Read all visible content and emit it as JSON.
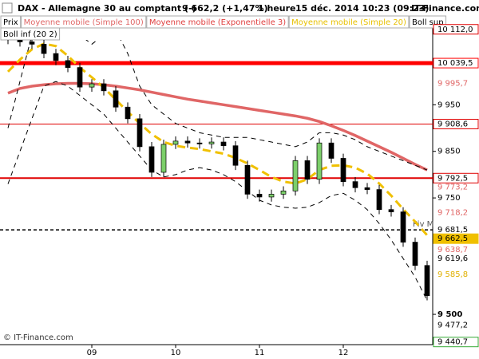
{
  "chart_data": {
    "type": "candlestick",
    "header": [
      "DAX - Allemagne 30 au comptant (-)",
      "9 662,2 (+1,47%)",
      "1 heure",
      "15 déc. 2014 10:23 (09:23)",
      "IT-Finance.com"
    ],
    "legend": [
      {
        "label": "Prix",
        "color": "#000000"
      },
      {
        "label": "Moyenne mobile (Simple 100)",
        "color": "#e06666"
      },
      {
        "label": "Moyenne mobile (Exponentielle 3)",
        "color": "#e04040"
      },
      {
        "label": "Moyenne mobile (Simple 20)",
        "color": "#e8c000"
      },
      {
        "label": "Boll sup",
        "color": "#000000"
      },
      {
        "label": "Boll inf (20 2)",
        "color": "#000000"
      }
    ],
    "footer": "© IT-Finance.com",
    "annotation": "Piv M",
    "categories": [
      null,
      null,
      null,
      null,
      null,
      null,
      null,
      "09",
      null,
      null,
      null,
      null,
      null,
      null,
      "10",
      null,
      null,
      null,
      null,
      null,
      null,
      "11",
      null,
      null,
      null,
      null,
      null,
      null,
      "12",
      null,
      null,
      null,
      null,
      null,
      null,
      null
    ],
    "open": [
      10100,
      10090,
      10085,
      10080,
      10060,
      10045,
      10030,
      9988,
      9995,
      9980,
      9945,
      9920,
      9860,
      9805,
      9865,
      9872,
      9868,
      9866,
      9870,
      9862,
      9820,
      9758,
      9752,
      9758,
      9765,
      9830,
      9790,
      9868,
      9835,
      9785,
      9772,
      9768,
      9725,
      9720,
      9655,
      9605
    ],
    "high": [
      10110,
      10100,
      10095,
      10090,
      10070,
      10055,
      10040,
      10005,
      10005,
      9990,
      9955,
      9930,
      9870,
      9875,
      9882,
      9882,
      9878,
      9880,
      9880,
      9872,
      9830,
      9768,
      9768,
      9775,
      9840,
      9840,
      9878,
      9878,
      9845,
      9795,
      9782,
      9778,
      9735,
      9730,
      9665,
      9615
    ],
    "low": [
      10080,
      10075,
      10070,
      10050,
      10035,
      10020,
      9978,
      9978,
      9970,
      9935,
      9910,
      9850,
      9795,
      9795,
      9855,
      9858,
      9856,
      9856,
      9852,
      9810,
      9748,
      9742,
      9742,
      9748,
      9755,
      9780,
      9780,
      9825,
      9775,
      9762,
      9758,
      9715,
      9710,
      9645,
      9595,
      9530
    ],
    "close": [
      10090,
      10085,
      10080,
      10060,
      10045,
      10030,
      9988,
      9995,
      9980,
      9945,
      9920,
      9860,
      9805,
      9865,
      9872,
      9868,
      9866,
      9870,
      9862,
      9820,
      9758,
      9752,
      9758,
      9765,
      9830,
      9790,
      9868,
      9835,
      9785,
      9772,
      9768,
      9725,
      9720,
      9655,
      9605,
      9540
    ],
    "up_color": "#7ccf6a",
    "down_color": "#000000",
    "lines": [
      {
        "color": "#e06666",
        "dashed": false,
        "values": [
          9975,
          9985,
          9990,
          9993,
          9995,
          9996,
          9996,
          9995,
          9993,
          9990,
          9986,
          9982,
          9977,
          9972,
          9967,
          9962,
          9958,
          9954,
          9950,
          9946,
          9942,
          9938,
          9934,
          9930,
          9926,
          9921,
          9914,
          9905,
          9895,
          9884,
          9872,
          9860,
          9848,
          9835,
          9822,
          9810
        ]
      },
      {
        "color": "#f0c000",
        "dashed": true,
        "values": [
          10021,
          10047,
          10069,
          10081,
          10076,
          10055,
          10030,
          10009,
          9987,
          9961,
          9935,
          9910,
          9887,
          9870,
          9862,
          9858,
          9855,
          9850,
          9845,
          9836,
          9824,
          9810,
          9795,
          9785,
          9781,
          9790,
          9810,
          9819,
          9820,
          9815,
          9802,
          9781,
          9755,
          9726,
          9699,
          9670
        ]
      },
      {
        "color": "#000000",
        "dashed": true,
        "values": [
          9900,
          10000,
          10100,
          10140,
          10140,
          10120,
          10100,
          10080,
          10100,
          10110,
          10060,
          9990,
          9950,
          9930,
          9910,
          9900,
          9890,
          9885,
          9880,
          9880,
          9880,
          9875,
          9870,
          9865,
          9860,
          9870,
          9890,
          9890,
          9885,
          9875,
          9860,
          9850,
          9840,
          9830,
          9820,
          9810
        ]
      },
      {
        "color": "#000000",
        "dashed": true,
        "values": [
          9780,
          9850,
          9920,
          9990,
          10000,
          9990,
          9970,
          9950,
          9930,
          9900,
          9870,
          9840,
          9810,
          9795,
          9800,
          9810,
          9815,
          9810,
          9800,
          9785,
          9765,
          9745,
          9735,
          9730,
          9728,
          9730,
          9740,
          9755,
          9760,
          9745,
          9725,
          9695,
          9660,
          9620,
          9580,
          9530
        ]
      }
    ],
    "levels": [
      {
        "value": 10112.0,
        "label": "10 112,0",
        "color": "#e00000",
        "style": "box"
      },
      {
        "value": 10039.5,
        "label": "10 039,5",
        "color": "#ff0000",
        "style": "box",
        "line": "thick"
      },
      {
        "value": 9995.7,
        "label": "9 995,7",
        "color": "#e06666",
        "style": "text"
      },
      {
        "value": 9908.6,
        "label": "9 908,6",
        "color": "#e00000",
        "style": "box",
        "line": "thin"
      },
      {
        "value": 9792.5,
        "label": "9 792,5",
        "color": "#e00000",
        "style": "box",
        "line": "medium"
      },
      {
        "value": 9773.2,
        "label": "9 773,2",
        "color": "#e06666",
        "style": "text"
      },
      {
        "value": 9718.2,
        "label": "9 718,2",
        "color": "#e06666",
        "style": "text"
      },
      {
        "value": 9681.5,
        "label": "9 681,5",
        "color": "#000000",
        "style": "text",
        "line": "dashed"
      },
      {
        "value": 9662.5,
        "label": "9 662,5",
        "color": "#f0c000",
        "style": "fill"
      },
      {
        "value": 9638.7,
        "label": "9 638,7",
        "color": "#e06666",
        "style": "text"
      },
      {
        "value": 9619.6,
        "label": "9 619,6",
        "color": "#000000",
        "style": "text"
      },
      {
        "value": 9585.8,
        "label": "9 585,8",
        "color": "#e0b000",
        "style": "text"
      },
      {
        "value": 9477.2,
        "label": "9 477,2",
        "color": "#000000",
        "style": "text"
      },
      {
        "value": 9440.7,
        "label": "9 440,7",
        "color": "#33aa33",
        "style": "box"
      }
    ],
    "ylim": [
      9435,
      10115
    ],
    "yticks": [
      {
        "value": 9500,
        "label": "9 500"
      },
      {
        "value": 9750,
        "label": "9 750"
      },
      {
        "value": 9850,
        "label": "9 850"
      },
      {
        "value": 9950,
        "label": "9 950"
      }
    ]
  }
}
